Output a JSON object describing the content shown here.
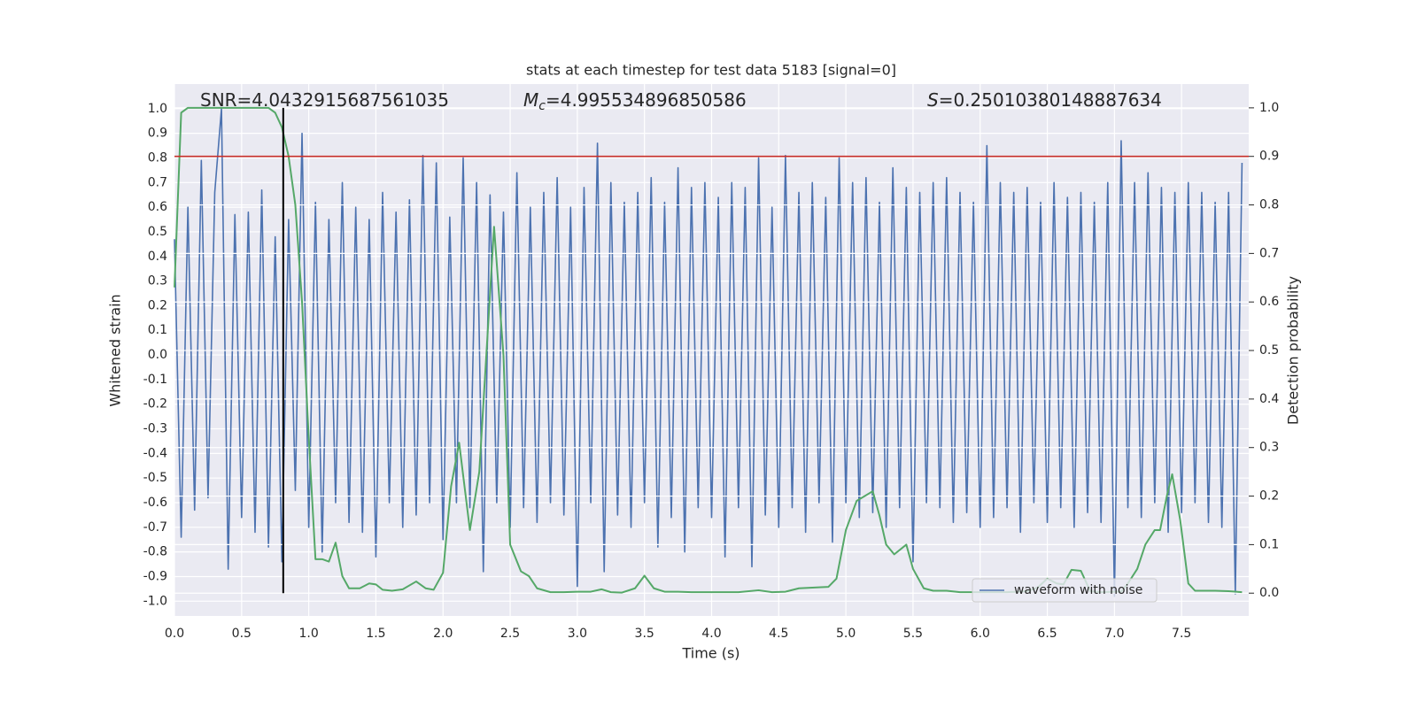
{
  "chart_data": {
    "type": "line",
    "title": "stats at each timestep for test data 5183 [signal=0]",
    "xlabel": "Time (s)",
    "ylabel": "Whitened strain",
    "y2label": "Detection probability",
    "xlim": [
      0,
      8.0
    ],
    "ylim": [
      -1.06,
      1.1
    ],
    "y2lim": [
      -0.047,
      1.049
    ],
    "xticks": [
      {
        "value": 0,
        "label": "0.0"
      },
      0.5,
      {
        "value": 1,
        "label": "1.0"
      },
      1.5,
      {
        "value": 2,
        "label": "2.0"
      },
      2.5,
      {
        "value": 3,
        "label": "3.0"
      },
      3.5,
      {
        "value": 4,
        "label": "4.0"
      },
      4.5,
      {
        "value": 5,
        "label": "5.0"
      },
      5.5,
      {
        "value": 6,
        "label": "6.0"
      },
      6.5,
      {
        "value": 7,
        "label": "7.0"
      },
      7.5
    ],
    "yticks": [
      {
        "value": -1,
        "label": "-1.0"
      },
      -0.9,
      -0.8,
      -0.7,
      -0.6,
      -0.5,
      -0.4,
      -0.3,
      -0.2,
      -0.1,
      {
        "value": 0,
        "label": "0.0"
      },
      0.1,
      0.2,
      0.3,
      0.4,
      0.5,
      0.6,
      0.7,
      0.8,
      0.9,
      {
        "value": 1,
        "label": "1.0"
      }
    ],
    "y2ticks": [
      {
        "value": 0,
        "label": "0.0"
      },
      0.1,
      0.2,
      0.3,
      0.4,
      0.5,
      0.6,
      0.7,
      0.8,
      0.9,
      {
        "value": 1,
        "label": "1.0"
      }
    ],
    "grid": true,
    "legend": "lower right",
    "series": [
      {
        "name": "waveform with noise",
        "color": "#4c72b0",
        "x": [
          0,
          0.05,
          0.1,
          0.15,
          0.2,
          0.25,
          0.3,
          0.35,
          0.4,
          0.45,
          0.5,
          0.55,
          0.6,
          0.65,
          0.7,
          0.75,
          0.8,
          0.85,
          0.9,
          0.95,
          1.0,
          1.05,
          1.1,
          1.15,
          1.2,
          1.25,
          1.3,
          1.35,
          1.4,
          1.45,
          1.5,
          1.55,
          1.6,
          1.65,
          1.7,
          1.75,
          1.8,
          1.85,
          1.9,
          1.95,
          2.0,
          2.05,
          2.1,
          2.15,
          2.2,
          2.25,
          2.3,
          2.35,
          2.4,
          2.45,
          2.5,
          2.55,
          2.6,
          2.65,
          2.7,
          2.75,
          2.8,
          2.85,
          2.9,
          2.95,
          3.0,
          3.05,
          3.1,
          3.15,
          3.2,
          3.25,
          3.3,
          3.35,
          3.4,
          3.45,
          3.5,
          3.55,
          3.6,
          3.65,
          3.7,
          3.75,
          3.8,
          3.85,
          3.9,
          3.95,
          4.0,
          4.05,
          4.1,
          4.15,
          4.2,
          4.25,
          4.3,
          4.35,
          4.4,
          4.45,
          4.5,
          4.55,
          4.6,
          4.65,
          4.7,
          4.75,
          4.8,
          4.85,
          4.9,
          4.95,
          5.0,
          5.05,
          5.1,
          5.15,
          5.2,
          5.25,
          5.3,
          5.35,
          5.4,
          5.45,
          5.5,
          5.55,
          5.6,
          5.65,
          5.7,
          5.75,
          5.8,
          5.85,
          5.9,
          5.95,
          6.0,
          6.05,
          6.1,
          6.15,
          6.2,
          6.25,
          6.3,
          6.35,
          6.4,
          6.45,
          6.5,
          6.55,
          6.6,
          6.65,
          6.7,
          6.75,
          6.8,
          6.85,
          6.9,
          6.95,
          7.0,
          7.05,
          7.1,
          7.15,
          7.2,
          7.25,
          7.3,
          7.35,
          7.4,
          7.45,
          7.5,
          7.55,
          7.6,
          7.65,
          7.7,
          7.75,
          7.8,
          7.85,
          7.9,
          7.95
        ],
        "values": [
          0.47,
          -0.74,
          0.6,
          -0.63,
          0.79,
          -0.58,
          0.66,
          1.0,
          -0.87,
          0.57,
          -0.66,
          0.58,
          -0.72,
          0.67,
          -0.78,
          0.48,
          -0.84,
          0.55,
          -0.55,
          0.9,
          -0.7,
          0.62,
          -0.8,
          0.55,
          -0.6,
          0.7,
          -0.68,
          0.6,
          -0.72,
          0.55,
          -0.82,
          0.66,
          -0.6,
          0.58,
          -0.7,
          0.63,
          -0.65,
          0.81,
          -0.6,
          0.78,
          -0.75,
          0.56,
          -0.6,
          0.8,
          -0.62,
          0.7,
          -0.88,
          0.65,
          -0.6,
          0.58,
          -0.7,
          0.74,
          -0.62,
          0.6,
          -0.68,
          0.66,
          -0.6,
          0.72,
          -0.65,
          0.6,
          -0.94,
          0.68,
          -0.6,
          0.86,
          -0.88,
          0.7,
          -0.65,
          0.62,
          -0.7,
          0.66,
          -0.6,
          0.72,
          -0.78,
          0.62,
          -0.66,
          0.76,
          -0.8,
          0.68,
          -0.62,
          0.7,
          -0.66,
          0.64,
          -0.82,
          0.7,
          -0.62,
          0.68,
          -0.86,
          0.8,
          -0.65,
          0.6,
          -0.7,
          0.81,
          -0.62,
          0.66,
          -0.72,
          0.7,
          -0.6,
          0.64,
          -0.76,
          0.8,
          -0.6,
          0.7,
          -0.66,
          0.72,
          -0.64,
          0.62,
          -0.7,
          0.76,
          -0.62,
          0.68,
          -0.84,
          0.66,
          -0.6,
          0.7,
          -0.62,
          0.72,
          -0.68,
          0.66,
          -0.64,
          0.62,
          -0.7,
          0.85,
          -0.66,
          0.7,
          -0.62,
          0.66,
          -0.72,
          0.68,
          -0.6,
          0.62,
          -0.68,
          0.7,
          -0.62,
          0.64,
          -0.7,
          0.66,
          -0.64,
          0.62,
          -0.68,
          0.7,
          -0.98,
          0.87,
          -0.62,
          0.7,
          -0.66,
          0.74,
          -0.6,
          0.68,
          -0.72,
          0.66,
          -0.64,
          0.7,
          -0.6,
          0.66,
          -0.68,
          0.62,
          -0.7,
          0.66,
          -0.97,
          0.78
        ]
      },
      {
        "color": "#55a868",
        "axis": "y2",
        "x": [
          0,
          0.05,
          0.1,
          0.2,
          0.3,
          0.4,
          0.5,
          0.6,
          0.7,
          0.75,
          0.8,
          0.85,
          0.9,
          0.95,
          1.0,
          1.05,
          1.1,
          1.15,
          1.2,
          1.25,
          1.3,
          1.38,
          1.45,
          1.5,
          1.55,
          1.62,
          1.7,
          1.8,
          1.87,
          1.93,
          2.0,
          2.06,
          2.12,
          2.2,
          2.27,
          2.38,
          2.45,
          2.5,
          2.58,
          2.64,
          2.7,
          2.8,
          2.9,
          3.0,
          3.1,
          3.18,
          3.25,
          3.33,
          3.43,
          3.5,
          3.57,
          3.65,
          3.75,
          3.85,
          4.0,
          4.2,
          4.35,
          4.45,
          4.55,
          4.65,
          4.8,
          4.87,
          4.93,
          5.0,
          5.08,
          5.2,
          5.25,
          5.3,
          5.36,
          5.45,
          5.5,
          5.58,
          5.65,
          5.75,
          5.85,
          6.0,
          6.2,
          6.35,
          6.43,
          6.5,
          6.57,
          6.62,
          6.68,
          6.75,
          6.82,
          6.9,
          7.0,
          7.05,
          7.1,
          7.17,
          7.23,
          7.3,
          7.34,
          7.39,
          7.43,
          7.49,
          7.55,
          7.6,
          7.75,
          7.85,
          7.95
        ],
        "values": [
          0.63,
          0.99,
          1.0,
          1.0,
          1.0,
          1.0,
          1.0,
          1.0,
          1.0,
          0.99,
          0.96,
          0.9,
          0.8,
          0.6,
          0.32,
          0.07,
          0.07,
          0.065,
          0.104,
          0.035,
          0.01,
          0.01,
          0.02,
          0.018,
          0.007,
          0.005,
          0.008,
          0.024,
          0.01,
          0.007,
          0.042,
          0.22,
          0.31,
          0.13,
          0.25,
          0.755,
          0.49,
          0.1,
          0.045,
          0.035,
          0.01,
          0.002,
          0.002,
          0.003,
          0.003,
          0.008,
          0.002,
          0.001,
          0.01,
          0.036,
          0.01,
          0.003,
          0.003,
          0.002,
          0.002,
          0.002,
          0.006,
          0.002,
          0.003,
          0.01,
          0.012,
          0.013,
          0.03,
          0.13,
          0.19,
          0.21,
          0.16,
          0.1,
          0.08,
          0.1,
          0.05,
          0.01,
          0.005,
          0.005,
          0.002,
          0.002,
          0.002,
          0.004,
          0.012,
          0.03,
          0.02,
          0.018,
          0.048,
          0.046,
          0.004,
          0.002,
          0.003,
          0.003,
          0.02,
          0.05,
          0.1,
          0.13,
          0.13,
          0.2,
          0.245,
          0.15,
          0.02,
          0.005,
          0.005,
          0.004,
          0.002
        ]
      }
    ],
    "hline": {
      "y": 0.9,
      "axis": "y2",
      "color": "#c8312b"
    },
    "vline": {
      "x": 0.81,
      "ymin": 0,
      "ymax": 1,
      "axis": "y2",
      "color": "#000000"
    },
    "annotations": [
      {
        "text": "SNR=4.0432915687561035"
      },
      {
        "symbol": "M",
        "subscript": "c",
        "text": "=4.995534896850586"
      },
      {
        "symbol": "S",
        "text": "=0.25010380148887634"
      }
    ]
  }
}
